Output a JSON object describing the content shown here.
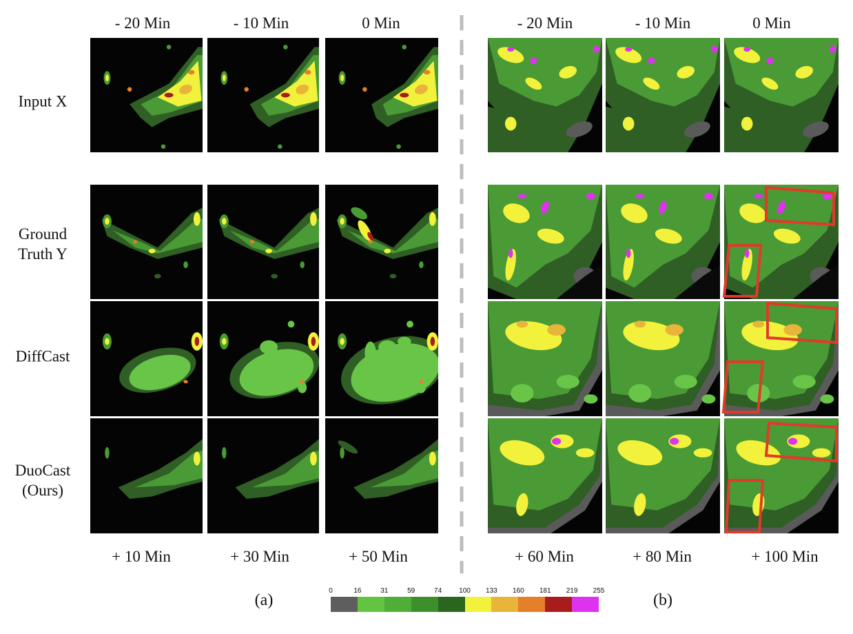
{
  "figure": {
    "left_input_times": [
      "- 20 Min",
      "- 10 Min",
      "0 Min"
    ],
    "right_input_times": [
      "- 20 Min",
      "- 10 Min",
      "0 Min"
    ],
    "left_output_times": [
      "+ 10 Min",
      "+ 30 Min",
      "+ 50 Min"
    ],
    "right_output_times": [
      "+ 60 Min",
      "+ 80 Min",
      "+ 100 Min"
    ],
    "rows": {
      "input": "Input X",
      "gt_line1": "Ground",
      "gt_line2": "Truth Y",
      "diffcast": "DiffCast",
      "duocast_line1": "DuoCast",
      "duocast_line2": "(Ours)"
    },
    "subfig_a": "(a)",
    "subfig_b": "(b)"
  },
  "colorbar": {
    "ticks": [
      "0",
      "16",
      "31",
      "59",
      "74",
      "100",
      "133",
      "160",
      "181",
      "219",
      "255"
    ],
    "colors": [
      "#5e5e5e",
      "#62c440",
      "#4fae38",
      "#3c8f2b",
      "#2a6620",
      "#f2f23c",
      "#e9b43a",
      "#e57f2a",
      "#a81c1c",
      "#dd33ee"
    ]
  },
  "colors": {
    "highlight_box": "#e23a2a",
    "panel_background": "#040404",
    "divider": "#bdbdbd"
  }
}
